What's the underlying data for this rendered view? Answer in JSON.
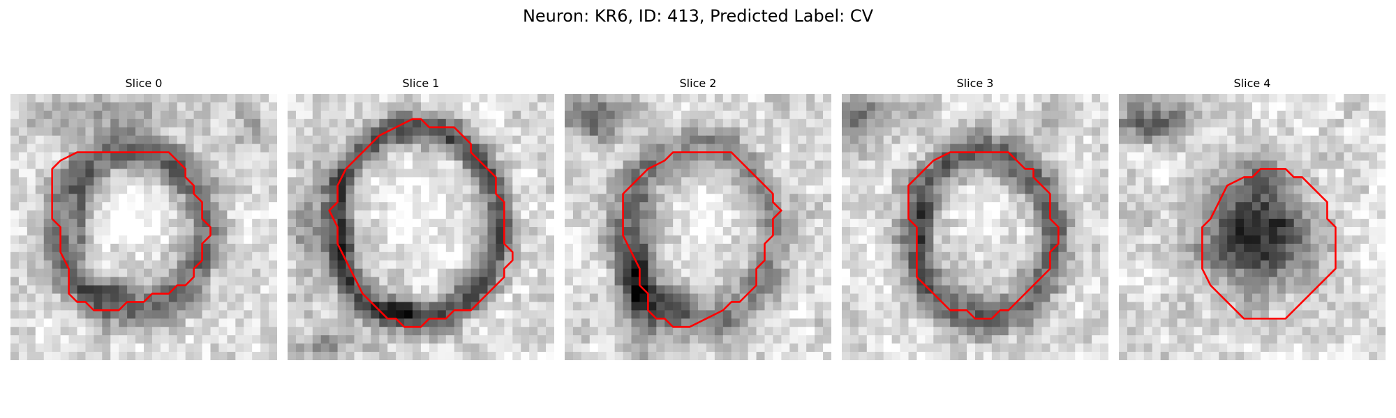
{
  "figure": {
    "title": "Neuron: KR6, ID: 413, Predicted Label: CV",
    "contour_color": "#ff0000",
    "colormap": "gray"
  },
  "panels": [
    {
      "title": "Slice 0"
    },
    {
      "title": "Slice 1"
    },
    {
      "title": "Slice 2"
    },
    {
      "title": "Slice 3"
    },
    {
      "title": "Slice 4"
    }
  ]
}
